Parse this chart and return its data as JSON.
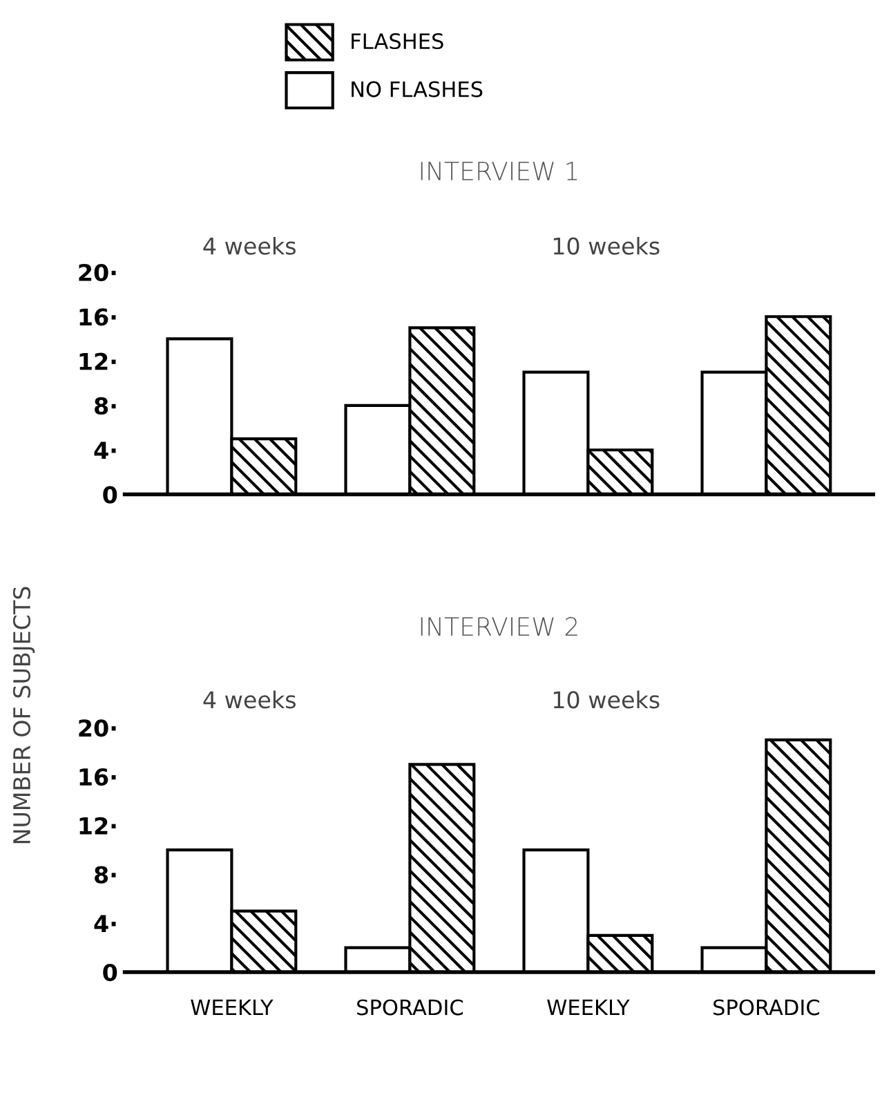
{
  "chart_data": [
    {
      "type": "bar",
      "title": "INTERVIEW 1",
      "categories": [
        null,
        null,
        null,
        null
      ],
      "series": [
        {
          "name": "FLASHES",
          "color": "#000000",
          "values": [
            5,
            15,
            4,
            16
          ]
        },
        {
          "name": "NO FLASHES",
          "color": "#ffffff",
          "values": [
            14,
            8,
            11,
            11
          ]
        }
      ],
      "annotations": [
        "4 weeks",
        "10 weeks"
      ],
      "ylim": [
        0,
        20
      ],
      "yticks": [
        0,
        {
          "value": 4,
          "label": "4·"
        },
        {
          "value": 8,
          "label": "8·"
        },
        {
          "value": 12,
          "label": "12·"
        },
        {
          "value": 16,
          "label": "16·"
        },
        {
          "value": 20,
          "label": "20·"
        }
      ],
      "tick_labels": "y",
      "legend": "top left",
      "grid": false
    },
    {
      "type": "bar",
      "title": "INTERVIEW 2",
      "ylabel": "NUMBER OF SUBJECTS",
      "categories": [
        "WEEKLY",
        "SPORADIC",
        "WEEKLY",
        "SPORADIC"
      ],
      "series": [
        {
          "color": "#000000",
          "values": [
            5,
            17,
            3,
            19
          ]
        },
        {
          "color": "#ffffff",
          "values": [
            10,
            2,
            10,
            2
          ]
        }
      ],
      "annotations": [
        "4 weeks",
        "10 weeks"
      ],
      "ylim": [
        0,
        20
      ],
      "yticks": [
        0,
        {
          "value": 4,
          "label": "4·"
        },
        {
          "value": 8,
          "label": "8·"
        },
        {
          "value": 12,
          "label": "12·"
        },
        {
          "value": 16,
          "label": "16·"
        },
        {
          "value": 20,
          "label": "20·"
        }
      ],
      "grid": false
    }
  ]
}
